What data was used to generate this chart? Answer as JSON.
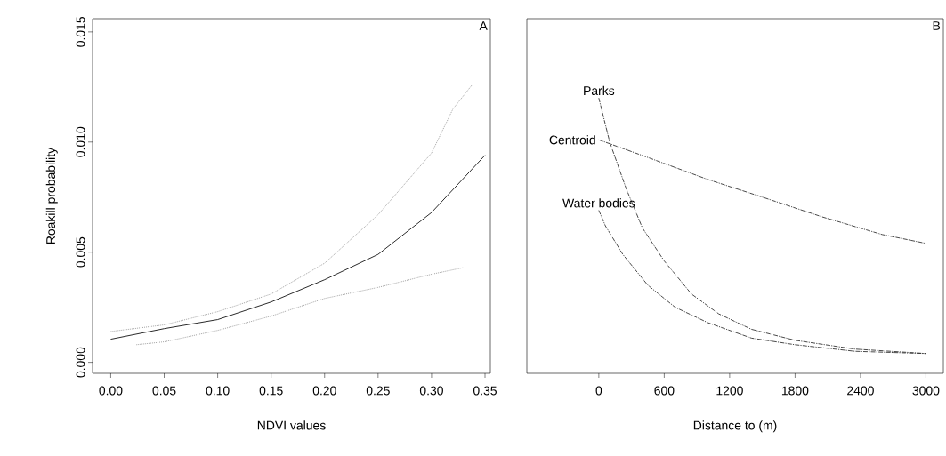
{
  "chart_data": [
    {
      "type": "line",
      "xlabel": "NDVI values",
      "ylabel": "Roakill probability",
      "annotations": [
        "A"
      ],
      "marker": "none",
      "xlim": [
        -0.017,
        0.355
      ],
      "xticks": [
        {
          "value": 0,
          "label": "0.00"
        },
        {
          "value": 0.05,
          "label": "0.05"
        },
        {
          "value": 0.1,
          "label": "0.10"
        },
        {
          "value": 0.15,
          "label": "0.15"
        },
        {
          "value": 0.2,
          "label": "0.20"
        },
        {
          "value": 0.25,
          "label": "0.25"
        },
        {
          "value": 0.3,
          "label": "0.30"
        },
        {
          "value": 0.35,
          "label": "0.35"
        }
      ],
      "ylim": [
        -0.0005,
        0.0156
      ],
      "yticks": [
        {
          "value": 0,
          "label": "0.000"
        },
        {
          "value": 0.005,
          "label": "0.005"
        },
        {
          "value": 0.01,
          "label": "0.010"
        },
        {
          "value": 0.015,
          "label": "0.015"
        }
      ],
      "series": [
        {
          "color": "#111111",
          "line_style": "solid",
          "x": [
            0,
            0.05,
            0.1,
            0.15,
            0.2,
            0.25,
            0.3,
            0.35
          ],
          "values": [
            0.00105,
            0.00153,
            0.00194,
            0.00274,
            0.00375,
            0.0049,
            0.0068,
            0.0094
          ]
        },
        {
          "color": "#999999",
          "line_style": "dotted",
          "x": [
            0,
            0.05,
            0.1,
            0.15,
            0.2,
            0.25,
            0.3,
            0.32,
            0.338
          ],
          "values": [
            0.0014,
            0.0017,
            0.0023,
            0.0031,
            0.0045,
            0.0067,
            0.0095,
            0.0115,
            0.0126
          ]
        },
        {
          "color": "#999999",
          "line_style": "dotted",
          "x": [
            0.024,
            0.05,
            0.1,
            0.15,
            0.2,
            0.25,
            0.3,
            0.33
          ],
          "values": [
            0.0008,
            0.00093,
            0.00145,
            0.0021,
            0.0029,
            0.0034,
            0.004,
            0.0043
          ]
        }
      ]
    },
    {
      "type": "line",
      "xlabel": "Distance to (m)",
      "annotations": [
        "B"
      ],
      "marker": "none",
      "tick_labels": "x",
      "xlim": [
        -660,
        3160
      ],
      "xticks": [
        0,
        600,
        1200,
        1800,
        2400,
        3000
      ],
      "ylim": [
        -0.0005,
        0.0156
      ],
      "series": [
        {
          "name": "Parks",
          "color": "#333333",
          "line_style": "dashed",
          "x": [
            0,
            100,
            250,
            400,
            600,
            850,
            1100,
            1400,
            1800,
            2350,
            3000
          ],
          "values": [
            0.012,
            0.01,
            0.0079,
            0.0061,
            0.0046,
            0.0031,
            0.0022,
            0.0015,
            0.001,
            0.0006,
            0.0004
          ]
        },
        {
          "name": "Centroid",
          "color": "#333333",
          "line_style": "dashed",
          "x": [
            0,
            450,
            1000,
            1500,
            2050,
            2600,
            3000
          ],
          "values": [
            0.0101,
            0.0093,
            0.0083,
            0.0075,
            0.0066,
            0.0058,
            0.0054
          ]
        },
        {
          "name": "Water bodies",
          "color": "#333333",
          "line_style": "dashed",
          "x": [
            0,
            60,
            220,
            450,
            700,
            1000,
            1400,
            1800,
            2350,
            3000
          ],
          "values": [
            0.0069,
            0.0062,
            0.0049,
            0.0035,
            0.0025,
            0.0018,
            0.0011,
            0.0008,
            0.0005,
            0.0004
          ]
        }
      ]
    }
  ]
}
